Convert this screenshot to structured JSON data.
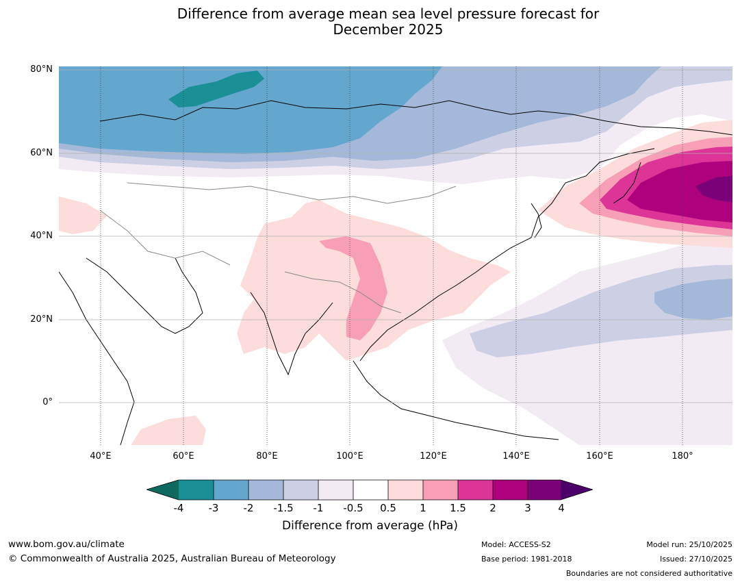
{
  "title": {
    "line1": "Difference from average mean sea level pressure forecast for",
    "line2": "December 2025"
  },
  "map": {
    "lat_labels": [
      "80°N",
      "60°N",
      "40°N",
      "20°N",
      "0°"
    ],
    "lon_labels": [
      "40°E",
      "60°E",
      "80°E",
      "100°E",
      "120°E",
      "140°E",
      "160°E",
      "180°"
    ],
    "extent": {
      "lon_min": 30,
      "lon_max": 192,
      "lat_min": -10,
      "lat_max": 81
    }
  },
  "colorbar": {
    "ticks": [
      "-4",
      "-3",
      "-2",
      "-1.5",
      "-1",
      "-0.5",
      "0.5",
      "1",
      "1.5",
      "2",
      "3",
      "4"
    ],
    "colors": {
      "below_min": "#0e6a5e",
      "neg_4_3": "#1a8f96",
      "neg_3_2": "#63a6ce",
      "neg_2_15": "#a4b9d9",
      "neg_15_1": "#cdd0e4",
      "neg_1_05": "#f3ebf4",
      "neutral": "#ffffff",
      "pos_05_1": "#fddcdc",
      "pos_1_15": "#f89fb8",
      "pos_15_2": "#dd3597",
      "pos_2_3": "#ae017e",
      "pos_3_4": "#7a0177",
      "above_max": "#4a0068"
    },
    "label": "Difference from average (hPa)"
  },
  "footer": {
    "url": "www.bom.gov.au/climate",
    "copyright": "© Commonwealth of Australia 2025, Australian Bureau of Meteorology",
    "model": "Model: ACCESS-S2",
    "base_period": "Base period: 1981-2018",
    "model_run": "Model run: 25/10/2025",
    "issued": "Issued: 27/10/2025",
    "boundaries": "Boundaries are not considered authoritative"
  }
}
